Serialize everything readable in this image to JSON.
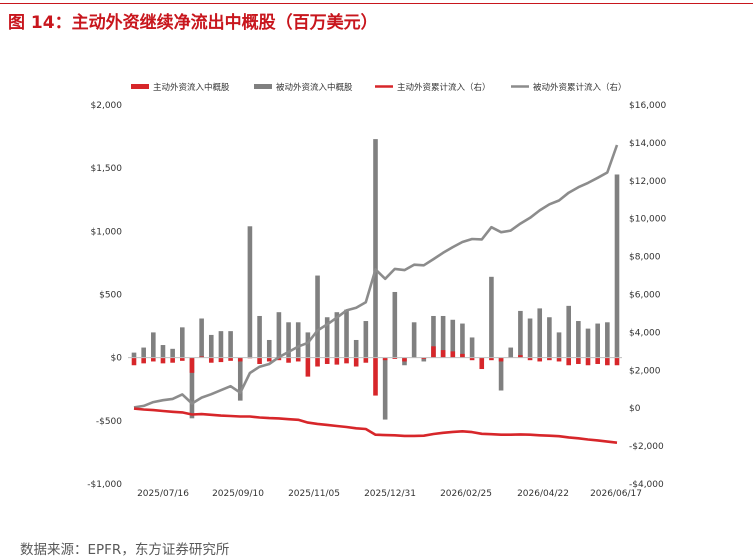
{
  "header": {
    "title": "图 14：主动外资继续净流出中概股（百万美元）"
  },
  "footer": {
    "source": "数据来源：EPFR，东方证券研究所"
  },
  "colors": {
    "title": "#c8161d",
    "active": "#d7262a",
    "passive": "#808080",
    "active_line": "#d7262a",
    "passive_line": "#8c8c8c"
  },
  "chart_data": {
    "type": "bar",
    "x_tick_labels": [
      "2025/07/16",
      "2025/09/10",
      "2025/11/05",
      "2025/12/31",
      "2026/02/25",
      "2026/04/22",
      "2026/06/17"
    ],
    "left_axis": {
      "ylim": [
        -1000,
        2000
      ],
      "ticks": [
        -1000,
        -500,
        0,
        500,
        1000,
        1500,
        2000
      ],
      "tick_labels": [
        "-$1,000",
        "-$500",
        "$0",
        "$500",
        "$1,000",
        "$1,500",
        "$2,000"
      ]
    },
    "right_axis": {
      "ylim": [
        -4000,
        16000
      ],
      "ticks": [
        -4000,
        -2000,
        0,
        2000,
        4000,
        6000,
        8000,
        10000,
        12000,
        14000,
        16000
      ],
      "tick_labels": [
        "-$4,000",
        "-$2,000",
        "$0",
        "$2,000",
        "$4,000",
        "$6,000",
        "$8,000",
        "$10,000",
        "$12,000",
        "$14,000",
        "$16,000"
      ]
    },
    "legend": [
      "主动外资流入中概股",
      "被动外资流入中概股",
      "主动外资累计流入（右）",
      "被动外资累计流入（右）"
    ],
    "legend_position": "top",
    "series": [
      {
        "name": "主动外资流入中概股",
        "type": "bar",
        "axis": "left",
        "values": [
          -60,
          -45,
          -30,
          -45,
          -40,
          -25,
          -120,
          10,
          -40,
          -35,
          -25,
          -30,
          -5,
          -50,
          -30,
          -20,
          -40,
          -30,
          -150,
          -70,
          -50,
          -55,
          -45,
          -70,
          -40,
          -300,
          -20,
          -10,
          -30,
          0,
          -10,
          90,
          60,
          50,
          30,
          -20,
          -90,
          -20,
          -30,
          0,
          20,
          -20,
          -30,
          -20,
          -30,
          -60,
          -50,
          -60,
          -50,
          -60,
          -60
        ]
      },
      {
        "name": "被动外资流入中概股",
        "type": "bar",
        "axis": "left",
        "values": [
          40,
          80,
          200,
          100,
          70,
          240,
          -480,
          310,
          180,
          210,
          210,
          -340,
          1040,
          330,
          140,
          360,
          280,
          280,
          200,
          650,
          320,
          360,
          380,
          140,
          290,
          1730,
          -490,
          520,
          -60,
          280,
          -30,
          330,
          330,
          300,
          270,
          160,
          -20,
          640,
          -260,
          80,
          370,
          310,
          390,
          320,
          200,
          410,
          290,
          230,
          270,
          280,
          1450
        ]
      },
      {
        "name": "主动外资累计流入（右）",
        "type": "line",
        "axis": "right",
        "values": [
          -20,
          -70,
          -100,
          -150,
          -190,
          -220,
          -330,
          -310,
          -350,
          -390,
          -410,
          -440,
          -440,
          -490,
          -520,
          -540,
          -580,
          -610,
          -760,
          -830,
          -880,
          -940,
          -990,
          -1060,
          -1100,
          -1400,
          -1420,
          -1430,
          -1460,
          -1460,
          -1450,
          -1360,
          -1300,
          -1250,
          -1220,
          -1260,
          -1350,
          -1370,
          -1400,
          -1400,
          -1380,
          -1400,
          -1430,
          -1450,
          -1480,
          -1540,
          -1590,
          -1650,
          -1700,
          -1760,
          -1820
        ]
      },
      {
        "name": "被动外资累计流入（右）",
        "type": "line",
        "axis": "right",
        "values": [
          40,
          120,
          320,
          420,
          490,
          730,
          250,
          560,
          740,
          950,
          1160,
          820,
          1860,
          2190,
          2330,
          2690,
          2970,
          3250,
          3450,
          4100,
          4420,
          4780,
          5160,
          5300,
          5590,
          7320,
          6830,
          7350,
          7290,
          7570,
          7540,
          7870,
          8200,
          8500,
          8770,
          8930,
          8910,
          9550,
          9290,
          9370,
          9740,
          10050,
          10440,
          10760,
          10960,
          11370,
          11660,
          11890,
          12160,
          12440,
          13890
        ]
      }
    ]
  }
}
